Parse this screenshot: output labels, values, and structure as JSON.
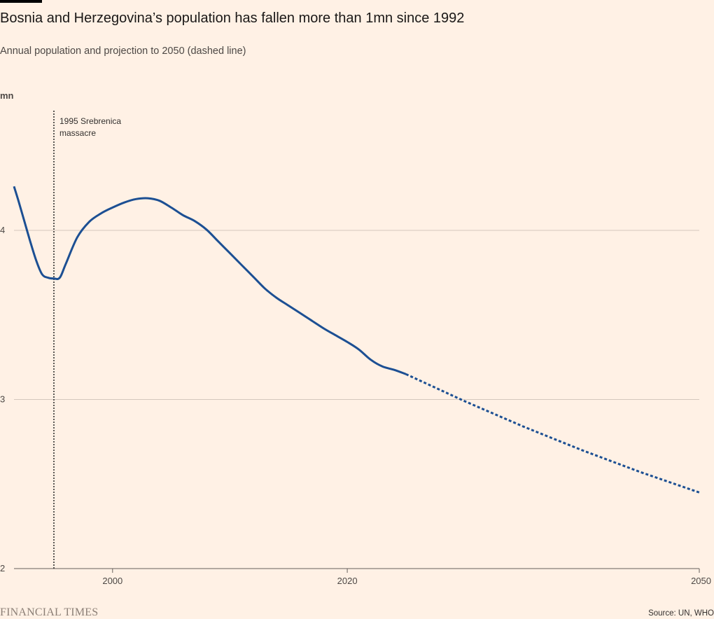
{
  "header": {
    "title": "Bosnia and Herzegovina’s population has fallen more than 1mn since 1992",
    "subtitle": "Annual population and projection to 2050 (dashed line)"
  },
  "chart_data": {
    "type": "line",
    "ylabel": "mn",
    "xlim": [
      1991.6,
      2050
    ],
    "ylim": [
      2,
      4.7
    ],
    "yticks": [
      2,
      3,
      4
    ],
    "xticks": [
      2000,
      2020,
      2050
    ],
    "grid": true,
    "series": [
      {
        "style": "solid",
        "color": "#1c4f93",
        "x": [
          1991.6,
          1992,
          1992.5,
          1993,
          1993.5,
          1994,
          1994.5,
          1995,
          1995.5,
          1996,
          1997,
          1998,
          1999,
          2000,
          2001,
          2002,
          2003,
          2004,
          2005,
          2006,
          2007,
          2008,
          2009,
          2010,
          2011,
          2012,
          2013,
          2014,
          2015,
          2016,
          2017,
          2018,
          2019,
          2020,
          2021,
          2022,
          2023,
          2024,
          2025
        ],
        "y": [
          4.26,
          4.17,
          4.05,
          3.93,
          3.82,
          3.74,
          3.72,
          3.715,
          3.72,
          3.8,
          3.96,
          4.05,
          4.1,
          4.135,
          4.165,
          4.185,
          4.19,
          4.175,
          4.135,
          4.09,
          4.055,
          4.005,
          3.935,
          3.865,
          3.795,
          3.725,
          3.655,
          3.6,
          3.555,
          3.51,
          3.465,
          3.42,
          3.38,
          3.34,
          3.295,
          3.235,
          3.195,
          3.175,
          3.15
        ]
      },
      {
        "style": "dashed",
        "color": "#1c4f93",
        "x": [
          2025,
          2030,
          2035,
          2040,
          2045,
          2050
        ],
        "y": [
          3.15,
          2.99,
          2.84,
          2.7,
          2.57,
          2.45
        ]
      }
    ],
    "annotations": [
      {
        "x": 1995,
        "label_line1": "1995 Srebrenica",
        "label_line2": "massacre"
      }
    ]
  },
  "footer": {
    "logo_text": "FINANCIAL TIMES",
    "source": "Source: UN, WHO"
  },
  "colors": {
    "background": "#fff1e5",
    "line": "#1c4f93",
    "grid": "#d4c8bd"
  }
}
